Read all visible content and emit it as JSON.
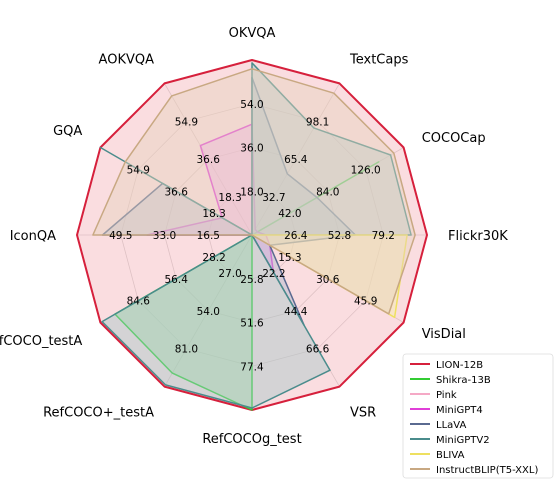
{
  "chart_data": {
    "type": "radar",
    "axes": [
      "OKVQA",
      "TextCaps",
      "COCOCap",
      "Flickr30K",
      "VisDial",
      "VSR",
      "RefCOCOg_test",
      "RefCOCO+_testA",
      "RefCOCO_testA",
      "IconQA",
      "GQA",
      "AOKVQA"
    ],
    "axis_max": [
      60,
      109,
      140,
      88,
      51,
      74,
      86,
      90,
      94,
      55,
      61,
      61
    ],
    "tick_labels": [
      [
        "18.0",
        "36.0",
        "54.0"
      ],
      [
        "32.7",
        "65.4",
        "98.1"
      ],
      [
        "42.0",
        "84.0",
        "126.0"
      ],
      [
        "26.4",
        "52.8",
        "79.2"
      ],
      [
        "15.3",
        "30.6",
        "45.9"
      ],
      [
        "22.2",
        "44.4",
        "66.6"
      ],
      [
        "25.8",
        "51.6",
        "77.4"
      ],
      [
        "27.0",
        "54.0",
        "81.0"
      ],
      [
        "28.2",
        "56.4",
        "84.6"
      ],
      [
        "16.5",
        "33.0",
        "49.5"
      ],
      [
        "18.3",
        "36.6",
        "54.9"
      ],
      [
        "18.3",
        "36.6",
        "54.9"
      ]
    ],
    "series": [
      {
        "name": "LION-12B",
        "color": "#d6203c",
        "fill": "#f4b4bb",
        "values": [
          60,
          109,
          140,
          88,
          51,
          74,
          86,
          90,
          94,
          55,
          61,
          61
        ]
      },
      {
        "name": "Shikra-13B",
        "color": "#33cc33",
        "fill": "#99dd99",
        "values": [
          0,
          0,
          117,
          0,
          0,
          0,
          86,
          82,
          85,
          0,
          0,
          0
        ]
      },
      {
        "name": "Pink",
        "color": "#f5a9c6",
        "fill": "#f9cfdf",
        "values": [
          0,
          0,
          0,
          0,
          0,
          0,
          0,
          0,
          0,
          0,
          0,
          0
        ]
      },
      {
        "name": "MiniGPT4",
        "color": "#e03fd8",
        "fill": "#eea5ea",
        "values": [
          38,
          4,
          5,
          7,
          6,
          18,
          0,
          0,
          0,
          33,
          12,
          36
        ]
      },
      {
        "name": "LLaVA",
        "color": "#5a6a90",
        "fill": "#b0b8cc",
        "values": [
          54,
          44,
          60,
          52,
          6,
          44,
          0,
          0,
          0,
          47,
          36,
          0
        ]
      },
      {
        "name": "MiniGPTV2",
        "color": "#4a8c8c",
        "fill": "#a6c8c8",
        "values": [
          59,
          77,
          128,
          80,
          0,
          66,
          85,
          89,
          93,
          0,
          61,
          0
        ]
      },
      {
        "name": "BLIVA",
        "color": "#eee060",
        "fill": "#f6efaa",
        "values": [
          0,
          0,
          0,
          78,
          48,
          0,
          0,
          0,
          0,
          0,
          0,
          0
        ]
      },
      {
        "name": "InstructBLIP(T5-XXL)",
        "color": "#c8a882",
        "fill": "#e6d3bd",
        "values": [
          57,
          102,
          131,
          82,
          46,
          0,
          0,
          0,
          0,
          50,
          51,
          56
        ]
      }
    ],
    "legend_position": "bottom-right",
    "grid": true
  }
}
